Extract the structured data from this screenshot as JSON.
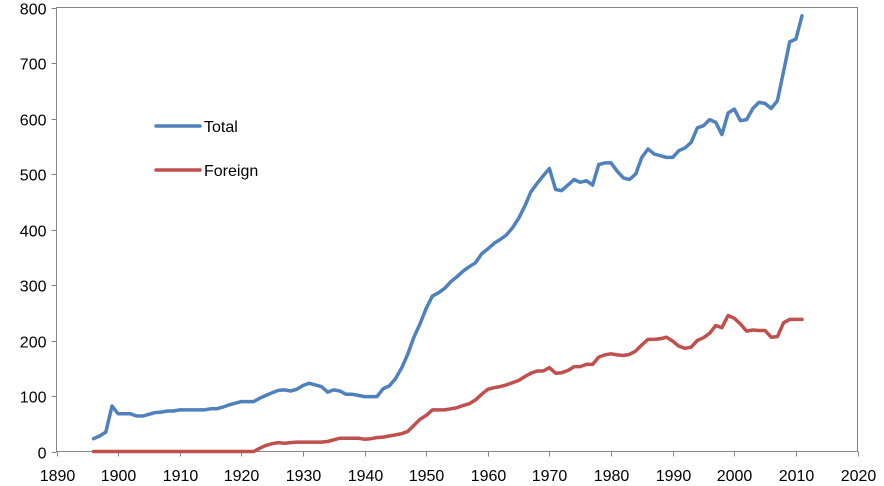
{
  "chart_data": {
    "type": "line",
    "title": "",
    "xlabel": "",
    "ylabel": "",
    "xlim": [
      1890,
      2020
    ],
    "ylim": [
      0,
      800
    ],
    "x_ticks": [
      1890,
      1900,
      1910,
      1920,
      1930,
      1940,
      1950,
      1960,
      1970,
      1980,
      1990,
      2000,
      2010,
      2020
    ],
    "y_ticks": [
      0,
      100,
      200,
      300,
      400,
      500,
      600,
      700,
      800
    ],
    "grid": false,
    "legend_position": "left-inside",
    "series": [
      {
        "name": "Total",
        "color": "#4F81BD",
        "points": [
          [
            1896,
            23
          ],
          [
            1897,
            28
          ],
          [
            1898,
            35
          ],
          [
            1899,
            82
          ],
          [
            1900,
            68
          ],
          [
            1901,
            68
          ],
          [
            1902,
            68
          ],
          [
            1903,
            64
          ],
          [
            1904,
            64
          ],
          [
            1905,
            67
          ],
          [
            1906,
            70
          ],
          [
            1907,
            71
          ],
          [
            1908,
            73
          ],
          [
            1909,
            73
          ],
          [
            1910,
            75
          ],
          [
            1911,
            75
          ],
          [
            1912,
            75
          ],
          [
            1913,
            75
          ],
          [
            1914,
            75
          ],
          [
            1915,
            77
          ],
          [
            1916,
            77
          ],
          [
            1917,
            80
          ],
          [
            1918,
            84
          ],
          [
            1919,
            87
          ],
          [
            1920,
            90
          ],
          [
            1921,
            90
          ],
          [
            1922,
            90
          ],
          [
            1923,
            96
          ],
          [
            1924,
            101
          ],
          [
            1925,
            106
          ],
          [
            1926,
            110
          ],
          [
            1927,
            111
          ],
          [
            1928,
            109
          ],
          [
            1929,
            112
          ],
          [
            1930,
            119
          ],
          [
            1931,
            123
          ],
          [
            1932,
            120
          ],
          [
            1933,
            117
          ],
          [
            1934,
            107
          ],
          [
            1935,
            111
          ],
          [
            1936,
            109
          ],
          [
            1937,
            103
          ],
          [
            1938,
            103
          ],
          [
            1939,
            101
          ],
          [
            1940,
            99
          ],
          [
            1941,
            99
          ],
          [
            1942,
            99
          ],
          [
            1943,
            113
          ],
          [
            1944,
            118
          ],
          [
            1945,
            131
          ],
          [
            1946,
            150
          ],
          [
            1947,
            175
          ],
          [
            1948,
            206
          ],
          [
            1949,
            230
          ],
          [
            1950,
            258
          ],
          [
            1951,
            280
          ],
          [
            1952,
            286
          ],
          [
            1953,
            294
          ],
          [
            1954,
            306
          ],
          [
            1955,
            315
          ],
          [
            1956,
            325
          ],
          [
            1957,
            333
          ],
          [
            1958,
            340
          ],
          [
            1959,
            356
          ],
          [
            1960,
            365
          ],
          [
            1961,
            375
          ],
          [
            1962,
            382
          ],
          [
            1963,
            390
          ],
          [
            1964,
            403
          ],
          [
            1965,
            420
          ],
          [
            1966,
            442
          ],
          [
            1967,
            468
          ],
          [
            1968,
            483
          ],
          [
            1969,
            497
          ],
          [
            1970,
            510
          ],
          [
            1971,
            472
          ],
          [
            1972,
            470
          ],
          [
            1973,
            480
          ],
          [
            1974,
            490
          ],
          [
            1975,
            485
          ],
          [
            1976,
            488
          ],
          [
            1977,
            480
          ],
          [
            1978,
            517
          ],
          [
            1979,
            520
          ],
          [
            1980,
            520
          ],
          [
            1981,
            505
          ],
          [
            1982,
            493
          ],
          [
            1983,
            490
          ],
          [
            1984,
            500
          ],
          [
            1985,
            530
          ],
          [
            1986,
            545
          ],
          [
            1987,
            536
          ],
          [
            1988,
            533
          ],
          [
            1989,
            530
          ],
          [
            1990,
            530
          ],
          [
            1991,
            542
          ],
          [
            1992,
            547
          ],
          [
            1993,
            557
          ],
          [
            1994,
            583
          ],
          [
            1995,
            587
          ],
          [
            1996,
            598
          ],
          [
            1997,
            593
          ],
          [
            1998,
            571
          ],
          [
            1999,
            610
          ],
          [
            2000,
            617
          ],
          [
            2001,
            596
          ],
          [
            2002,
            598
          ],
          [
            2003,
            618
          ],
          [
            2004,
            629
          ],
          [
            2005,
            627
          ],
          [
            2006,
            618
          ],
          [
            2007,
            632
          ],
          [
            2008,
            685
          ],
          [
            2009,
            738
          ],
          [
            2010,
            743
          ],
          [
            2011,
            785
          ]
        ]
      },
      {
        "name": "Foreign",
        "color": "#C0504D",
        "points": [
          [
            1896,
            0
          ],
          [
            1900,
            0
          ],
          [
            1905,
            0
          ],
          [
            1910,
            0
          ],
          [
            1915,
            0
          ],
          [
            1920,
            0
          ],
          [
            1922,
            0
          ],
          [
            1923,
            6
          ],
          [
            1924,
            11
          ],
          [
            1925,
            14
          ],
          [
            1926,
            16
          ],
          [
            1927,
            15
          ],
          [
            1928,
            16
          ],
          [
            1929,
            17
          ],
          [
            1930,
            17
          ],
          [
            1931,
            17
          ],
          [
            1932,
            17
          ],
          [
            1933,
            17
          ],
          [
            1934,
            18
          ],
          [
            1935,
            21
          ],
          [
            1936,
            24
          ],
          [
            1937,
            24
          ],
          [
            1938,
            24
          ],
          [
            1939,
            24
          ],
          [
            1940,
            22
          ],
          [
            1941,
            23
          ],
          [
            1942,
            25
          ],
          [
            1943,
            26
          ],
          [
            1944,
            28
          ],
          [
            1945,
            30
          ],
          [
            1946,
            32
          ],
          [
            1947,
            36
          ],
          [
            1948,
            47
          ],
          [
            1949,
            58
          ],
          [
            1950,
            65
          ],
          [
            1951,
            75
          ],
          [
            1952,
            75
          ],
          [
            1953,
            75
          ],
          [
            1954,
            77
          ],
          [
            1955,
            79
          ],
          [
            1956,
            83
          ],
          [
            1957,
            86
          ],
          [
            1958,
            93
          ],
          [
            1959,
            103
          ],
          [
            1960,
            112
          ],
          [
            1961,
            115
          ],
          [
            1962,
            117
          ],
          [
            1963,
            120
          ],
          [
            1964,
            124
          ],
          [
            1965,
            128
          ],
          [
            1966,
            135
          ],
          [
            1967,
            141
          ],
          [
            1968,
            145
          ],
          [
            1969,
            145
          ],
          [
            1970,
            151
          ],
          [
            1971,
            141
          ],
          [
            1972,
            142
          ],
          [
            1973,
            146
          ],
          [
            1974,
            153
          ],
          [
            1975,
            153
          ],
          [
            1976,
            157
          ],
          [
            1977,
            157
          ],
          [
            1978,
            170
          ],
          [
            1979,
            174
          ],
          [
            1980,
            176
          ],
          [
            1981,
            174
          ],
          [
            1982,
            173
          ],
          [
            1983,
            175
          ],
          [
            1984,
            181
          ],
          [
            1985,
            192
          ],
          [
            1986,
            202
          ],
          [
            1987,
            202
          ],
          [
            1988,
            203
          ],
          [
            1989,
            206
          ],
          [
            1990,
            199
          ],
          [
            1991,
            190
          ],
          [
            1992,
            186
          ],
          [
            1993,
            188
          ],
          [
            1994,
            200
          ],
          [
            1995,
            205
          ],
          [
            1996,
            213
          ],
          [
            1997,
            227
          ],
          [
            1998,
            223
          ],
          [
            1999,
            245
          ],
          [
            2000,
            240
          ],
          [
            2001,
            230
          ],
          [
            2002,
            217
          ],
          [
            2003,
            219
          ],
          [
            2004,
            218
          ],
          [
            2005,
            218
          ],
          [
            2006,
            206
          ],
          [
            2007,
            207
          ],
          [
            2008,
            232
          ],
          [
            2009,
            238
          ],
          [
            2010,
            238
          ],
          [
            2011,
            238
          ]
        ]
      }
    ]
  }
}
